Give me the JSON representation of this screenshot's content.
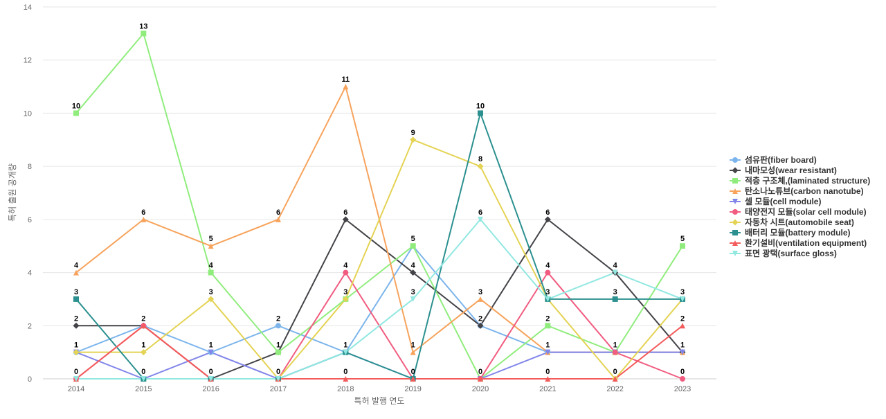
{
  "chart_data": {
    "type": "line",
    "title": "",
    "xlabel": "특허 발행 연도",
    "ylabel": "특허 출원 공개량",
    "ylim": [
      0,
      14
    ],
    "yticks": [
      0,
      2,
      4,
      6,
      8,
      10,
      12,
      14
    ],
    "grid": true,
    "legend_position": "right",
    "categories": [
      "2014",
      "2015",
      "2016",
      "2017",
      "2018",
      "2019",
      "2020",
      "2021",
      "2022",
      "2023"
    ],
    "series": [
      {
        "name": "섬유판(fiber board)",
        "color": "#7cb5ec",
        "marker": "circle",
        "values": [
          1,
          2,
          1,
          2,
          1,
          5,
          2,
          1,
          1,
          1
        ]
      },
      {
        "name": "내마모성(wear resistant)",
        "color": "#434348",
        "marker": "diamond",
        "values": [
          2,
          2,
          0,
          1,
          6,
          4,
          2,
          6,
          4,
          1
        ]
      },
      {
        "name": "적층 구조체,(laminated structure)",
        "color": "#90ed7d",
        "marker": "square",
        "values": [
          10,
          13,
          4,
          1,
          3,
          5,
          0,
          2,
          1,
          5
        ]
      },
      {
        "name": "탄소나노튜브(carbon nanotube)",
        "color": "#f7a35c",
        "marker": "triangle",
        "values": [
          4,
          6,
          5,
          6,
          11,
          1,
          3,
          1,
          1,
          1
        ]
      },
      {
        "name": "셀 모듈(cell module)",
        "color": "#8085e9",
        "marker": "triangle-down",
        "values": [
          1,
          0,
          1,
          0,
          1,
          0,
          0,
          1,
          1,
          1
        ]
      },
      {
        "name": "태양전지 모듈(solar cell module)",
        "color": "#f15c80",
        "marker": "circle",
        "values": [
          0,
          2,
          0,
          0,
          4,
          0,
          0,
          4,
          1,
          0
        ]
      },
      {
        "name": "자동차 시트(automobile seat)",
        "color": "#e4d354",
        "marker": "diamond",
        "values": [
          1,
          1,
          3,
          0,
          3,
          9,
          8,
          3,
          0,
          3
        ]
      },
      {
        "name": "배터리 모듈(battery module)",
        "color": "#2b908f",
        "marker": "square",
        "values": [
          3,
          0,
          0,
          0,
          1,
          0,
          10,
          3,
          3,
          3
        ]
      },
      {
        "name": "환기설비(ventilation equipment)",
        "color": "#f45b5b",
        "marker": "triangle",
        "values": [
          0,
          2,
          0,
          0,
          0,
          0,
          0,
          0,
          0,
          2
        ]
      },
      {
        "name": "표면 광택(surface gloss)",
        "color": "#91e8e1",
        "marker": "triangle-down",
        "values": [
          0,
          0,
          0,
          0,
          1,
          3,
          6,
          3,
          4,
          3
        ]
      }
    ],
    "data_labels": [
      {
        "x": "2014",
        "labels": [
          {
            "value": 10,
            "series": 2
          },
          {
            "value": 4,
            "series": 3
          },
          {
            "value": 3,
            "series": 7
          },
          {
            "value": 2,
            "series": 1
          },
          {
            "value": 1,
            "series": 0
          },
          {
            "value": 0,
            "series": 5
          }
        ]
      },
      {
        "x": "2015",
        "labels": [
          {
            "value": 13,
            "series": 2
          },
          {
            "value": 6,
            "series": 3
          },
          {
            "value": 2,
            "series": 0
          },
          {
            "value": 1,
            "series": 6
          },
          {
            "value": 0,
            "series": 7
          }
        ]
      },
      {
        "x": "2016",
        "labels": [
          {
            "value": 5,
            "series": 3
          },
          {
            "value": 4,
            "series": 2
          },
          {
            "value": 3,
            "series": 6
          },
          {
            "value": 1,
            "series": 0
          },
          {
            "value": 0,
            "series": 1
          }
        ]
      },
      {
        "x": "2017",
        "labels": [
          {
            "value": 6,
            "series": 3
          },
          {
            "value": 2,
            "series": 0
          },
          {
            "value": 1,
            "series": 1
          },
          {
            "value": 0,
            "series": 6
          }
        ]
      },
      {
        "x": "2018",
        "labels": [
          {
            "value": 11,
            "series": 3
          },
          {
            "value": 6,
            "series": 1
          },
          {
            "value": 4,
            "series": 5
          },
          {
            "value": 3,
            "series": 2
          },
          {
            "value": 1,
            "series": 0
          },
          {
            "value": 0,
            "series": 8
          }
        ]
      },
      {
        "x": "2019",
        "labels": [
          {
            "value": 9,
            "series": 6
          },
          {
            "value": 5,
            "series": 0
          },
          {
            "value": 4,
            "series": 1
          },
          {
            "value": 3,
            "series": 9
          },
          {
            "value": 1,
            "series": 3
          },
          {
            "value": 0,
            "series": 7
          }
        ]
      },
      {
        "x": "2020",
        "labels": [
          {
            "value": 10,
            "series": 7
          },
          {
            "value": 8,
            "series": 6
          },
          {
            "value": 6,
            "series": 9
          },
          {
            "value": 3,
            "series": 3
          },
          {
            "value": 2,
            "series": 0
          },
          {
            "value": 0,
            "series": 2
          }
        ]
      },
      {
        "x": "2021",
        "labels": [
          {
            "value": 6,
            "series": 1
          },
          {
            "value": 4,
            "series": 5
          },
          {
            "value": 3,
            "series": 7
          },
          {
            "value": 2,
            "series": 2
          },
          {
            "value": 1,
            "series": 0
          },
          {
            "value": 0,
            "series": 8
          }
        ]
      },
      {
        "x": "2022",
        "labels": [
          {
            "value": 4,
            "series": 9
          },
          {
            "value": 3,
            "series": 7
          },
          {
            "value": 1,
            "series": 0
          },
          {
            "value": 0,
            "series": 6
          }
        ]
      },
      {
        "x": "2023",
        "labels": [
          {
            "value": 5,
            "series": 2
          },
          {
            "value": 3,
            "series": 7
          },
          {
            "value": 2,
            "series": 8
          },
          {
            "value": 1,
            "series": 0
          },
          {
            "value": 0,
            "series": 5
          }
        ]
      }
    ]
  }
}
